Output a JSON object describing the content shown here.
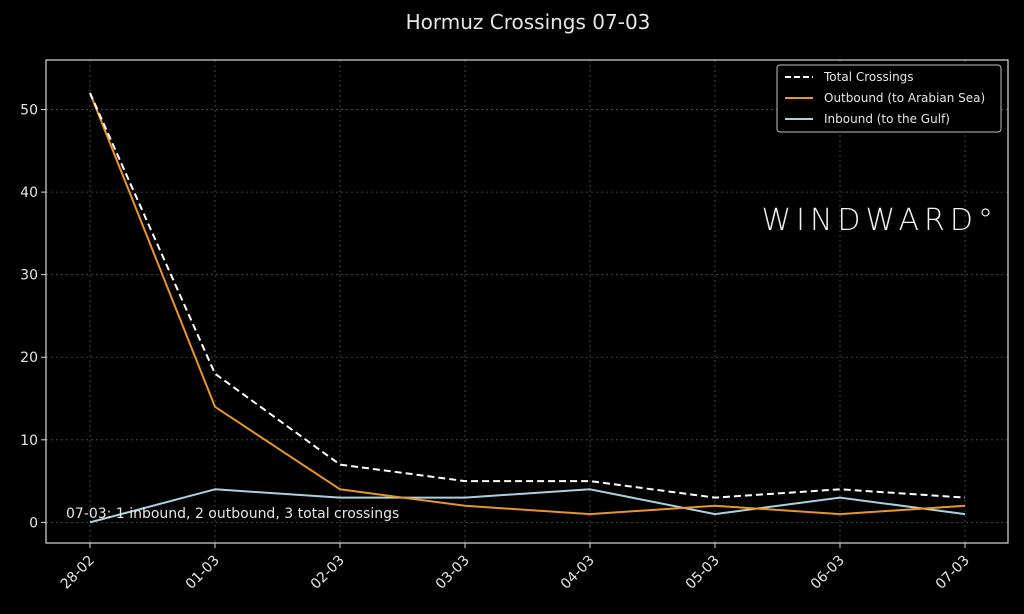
{
  "chart_data": {
    "type": "line",
    "title": "Hormuz Crossings 07-03",
    "xlabel": "",
    "ylabel": "",
    "categories": [
      "28-02",
      "01-03",
      "02-03",
      "03-03",
      "04-03",
      "05-03",
      "06-03",
      "07-03"
    ],
    "ylim": [
      -2.5,
      56
    ],
    "yticks": [
      0,
      10,
      20,
      30,
      40,
      50
    ],
    "grid": true,
    "legend_position": "top-right",
    "series": [
      {
        "name": "Total Crossings",
        "values": [
          52,
          18,
          7,
          5,
          5,
          3,
          4,
          3
        ],
        "color": "#ffffff",
        "style": "dashed"
      },
      {
        "name": "Outbound (to Arabian Sea)",
        "values": [
          52,
          14,
          4,
          2,
          1,
          2,
          1,
          2
        ],
        "color": "#e8952a",
        "style": "solid"
      },
      {
        "name": "Inbound (to the Gulf)",
        "values": [
          0,
          4,
          3,
          3,
          4,
          1,
          3,
          1
        ],
        "color": "#a9d2e0",
        "style": "solid"
      }
    ],
    "annotation": "07-03: 1 inbound, 2 outbound, 3 total crossings",
    "watermark": "WINDWARD°"
  }
}
